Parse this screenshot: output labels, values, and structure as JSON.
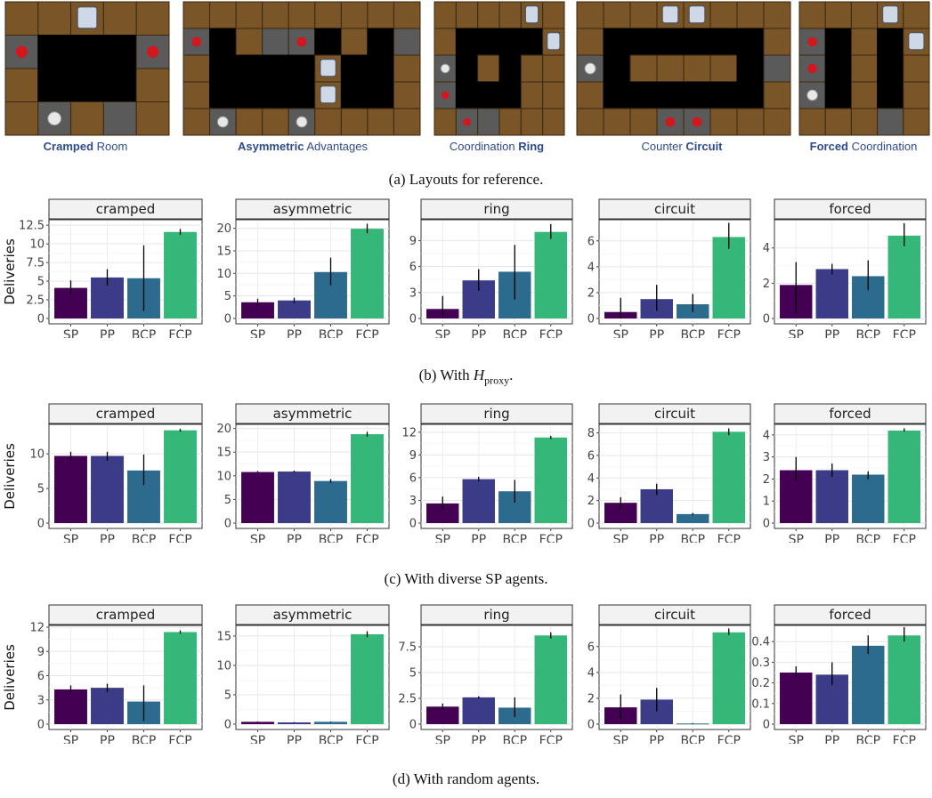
{
  "layouts": [
    {
      "bold": "Cramped",
      "rest": " Room",
      "bold_first": true
    },
    {
      "bold": "Asymmetric",
      "rest": " Advantages",
      "bold_first": true
    },
    {
      "bold": "Ring",
      "rest": "Coordination ",
      "bold_first": false
    },
    {
      "bold": "Circuit",
      "rest": "Counter ",
      "bold_first": false
    },
    {
      "bold": "Forced",
      "rest": " Coordination",
      "bold_first": true
    }
  ],
  "captions": {
    "a": "(a) Layouts for reference.",
    "b_prefix": "(b) With ",
    "b_math": "H",
    "b_sub": "proxy",
    "b_suffix": ".",
    "c": "(c) With diverse SP agents.",
    "d": "(d) With random agents."
  },
  "colors": {
    "SP": "#440154",
    "PP": "#3b3b88",
    "BCP": "#2c6b8e",
    "FCP": "#35b779"
  },
  "chart_data": [
    {
      "type": "bar",
      "row": "b",
      "ylabel": "Deliveries",
      "categories": [
        "SP",
        "PP",
        "BCP",
        "FCP"
      ],
      "panels": [
        {
          "title": "cramped",
          "ylim": [
            0,
            13
          ],
          "ticks": [
            "0",
            "2.5",
            "5",
            "7.5",
            "10",
            "12.5"
          ],
          "tick_values": [
            0,
            2.5,
            5,
            7.5,
            10,
            12.5
          ],
          "values": [
            4.1,
            5.5,
            5.4,
            11.6
          ],
          "err_low": [
            3.2,
            4.4,
            1.0,
            11.2
          ],
          "err_high": [
            5.1,
            6.6,
            9.8,
            12.0
          ]
        },
        {
          "title": "asymmetric",
          "ylim": [
            0,
            21.5
          ],
          "ticks": [
            "0",
            "5",
            "10",
            "15",
            "20"
          ],
          "tick_values": [
            0,
            5,
            10,
            15,
            20
          ],
          "values": [
            3.6,
            4.0,
            10.3,
            19.9
          ],
          "err_low": [
            2.8,
            3.4,
            7.4,
            18.9
          ],
          "err_high": [
            4.4,
            4.6,
            13.5,
            21.0
          ]
        },
        {
          "title": "ring",
          "ylim": [
            0,
            11.2
          ],
          "ticks": [
            "0",
            "3",
            "6",
            "9"
          ],
          "tick_values": [
            0,
            3,
            6,
            9
          ],
          "values": [
            1.1,
            4.4,
            5.4,
            10.0
          ],
          "err_low": [
            0.3,
            3.2,
            2.2,
            9.2
          ],
          "err_high": [
            2.6,
            5.7,
            8.5,
            10.9
          ]
        },
        {
          "title": "circuit",
          "ylim": [
            0,
            7.5
          ],
          "ticks": [
            "0",
            "2",
            "4",
            "6"
          ],
          "tick_values": [
            0,
            2,
            4,
            6
          ],
          "values": [
            0.5,
            1.5,
            1.1,
            6.3
          ],
          "err_low": [
            0.0,
            0.6,
            0.5,
            5.4
          ],
          "err_high": [
            1.6,
            2.6,
            1.9,
            7.4
          ]
        },
        {
          "title": "forced",
          "ylim": [
            0,
            5.5
          ],
          "ticks": [
            "0",
            "2",
            "4"
          ],
          "tick_values": [
            0,
            2,
            4
          ],
          "values": [
            1.9,
            2.8,
            2.4,
            4.7
          ],
          "err_low": [
            0.3,
            2.5,
            1.6,
            4.1
          ],
          "err_high": [
            3.2,
            3.1,
            3.3,
            5.4
          ]
        }
      ]
    },
    {
      "type": "bar",
      "row": "c",
      "ylabel": "Deliveries",
      "categories": [
        "SP",
        "PP",
        "BCP",
        "FCP"
      ],
      "panels": [
        {
          "title": "cramped",
          "ylim": [
            0,
            14
          ],
          "ticks": [
            "0",
            "5",
            "10"
          ],
          "tick_values": [
            0,
            5,
            10
          ],
          "values": [
            9.7,
            9.7,
            7.6,
            13.4
          ],
          "err_low": [
            9.0,
            9.0,
            5.5,
            13.2
          ],
          "err_high": [
            10.3,
            10.3,
            9.9,
            13.6
          ]
        },
        {
          "title": "asymmetric",
          "ylim": [
            0,
            20.5
          ],
          "ticks": [
            "0",
            "5",
            "10",
            "15",
            "20"
          ],
          "tick_values": [
            0,
            5,
            10,
            15,
            20
          ],
          "values": [
            10.8,
            10.9,
            8.9,
            18.8
          ],
          "err_low": [
            10.6,
            10.7,
            8.5,
            18.3
          ],
          "err_high": [
            11.0,
            11.1,
            9.3,
            19.3
          ]
        },
        {
          "title": "ring",
          "ylim": [
            0,
            12.8
          ],
          "ticks": [
            "0",
            "3",
            "6",
            "9",
            "12"
          ],
          "tick_values": [
            0,
            3,
            6,
            9,
            12
          ],
          "values": [
            2.6,
            5.8,
            4.2,
            11.3
          ],
          "err_low": [
            1.8,
            5.5,
            2.7,
            11.1
          ],
          "err_high": [
            3.5,
            6.1,
            5.7,
            11.5
          ]
        },
        {
          "title": "circuit",
          "ylim": [
            0,
            8.6
          ],
          "ticks": [
            "0",
            "2",
            "4",
            "6",
            "8"
          ],
          "tick_values": [
            0,
            2,
            4,
            6,
            8
          ],
          "values": [
            1.8,
            3.0,
            0.8,
            8.1
          ],
          "err_low": [
            1.2,
            2.5,
            0.7,
            7.8
          ],
          "err_high": [
            2.3,
            3.5,
            0.9,
            8.4
          ]
        },
        {
          "title": "forced",
          "ylim": [
            0,
            4.4
          ],
          "ticks": [
            "0",
            "1",
            "2",
            "3",
            "4"
          ],
          "tick_values": [
            0,
            1,
            2,
            3,
            4
          ],
          "values": [
            2.4,
            2.4,
            2.2,
            4.2
          ],
          "err_low": [
            1.9,
            2.1,
            2.0,
            4.15
          ],
          "err_high": [
            3.0,
            2.7,
            2.35,
            4.3
          ]
        }
      ]
    },
    {
      "type": "bar",
      "row": "d",
      "ylabel": "Deliveries",
      "categories": [
        "SP",
        "PP",
        "BCP",
        "FCP"
      ],
      "panels": [
        {
          "title": "cramped",
          "ylim": [
            0,
            12
          ],
          "ticks": [
            "0",
            "3",
            "6",
            "9",
            "12"
          ],
          "tick_values": [
            0,
            3,
            6,
            9,
            12
          ],
          "values": [
            4.3,
            4.5,
            2.8,
            11.4
          ],
          "err_low": [
            3.8,
            4.0,
            0.4,
            11.2
          ],
          "err_high": [
            4.8,
            5.0,
            4.8,
            11.6
          ]
        },
        {
          "title": "asymmetric",
          "ylim": [
            0,
            16.5
          ],
          "ticks": [
            "0",
            "5",
            "10",
            "15"
          ],
          "tick_values": [
            0,
            5,
            10,
            15
          ],
          "values": [
            0.4,
            0.3,
            0.4,
            15.3
          ],
          "err_low": [
            0.35,
            0.25,
            0.35,
            14.8
          ],
          "err_high": [
            0.45,
            0.35,
            0.45,
            15.8
          ]
        },
        {
          "title": "ring",
          "ylim": [
            0,
            9.4
          ],
          "ticks": [
            "0",
            "2.5",
            "5",
            "7.5"
          ],
          "tick_values": [
            0,
            2.5,
            5,
            7.5
          ],
          "values": [
            1.7,
            2.6,
            1.6,
            8.6
          ],
          "err_low": [
            1.4,
            2.5,
            0.7,
            8.3
          ],
          "err_high": [
            2.0,
            2.7,
            2.6,
            8.9
          ]
        },
        {
          "title": "circuit",
          "ylim": [
            0,
            7.5
          ],
          "ticks": [
            "0",
            "2",
            "4",
            "6"
          ],
          "tick_values": [
            0,
            2,
            4,
            6
          ],
          "values": [
            1.3,
            1.9,
            0.05,
            7.1
          ],
          "err_low": [
            0.4,
            1.0,
            0.02,
            6.9
          ],
          "err_high": [
            2.3,
            2.8,
            0.08,
            7.4
          ]
        },
        {
          "title": "forced",
          "ylim": [
            0,
            0.47
          ],
          "ticks": [
            "0",
            "0.1",
            "0.2",
            "0.3",
            "0.4"
          ],
          "tick_values": [
            0,
            0.1,
            0.2,
            0.3,
            0.4
          ],
          "values": [
            0.25,
            0.24,
            0.38,
            0.43
          ],
          "err_low": [
            0.23,
            0.19,
            0.34,
            0.4
          ],
          "err_high": [
            0.28,
            0.3,
            0.43,
            0.47
          ]
        }
      ]
    }
  ]
}
